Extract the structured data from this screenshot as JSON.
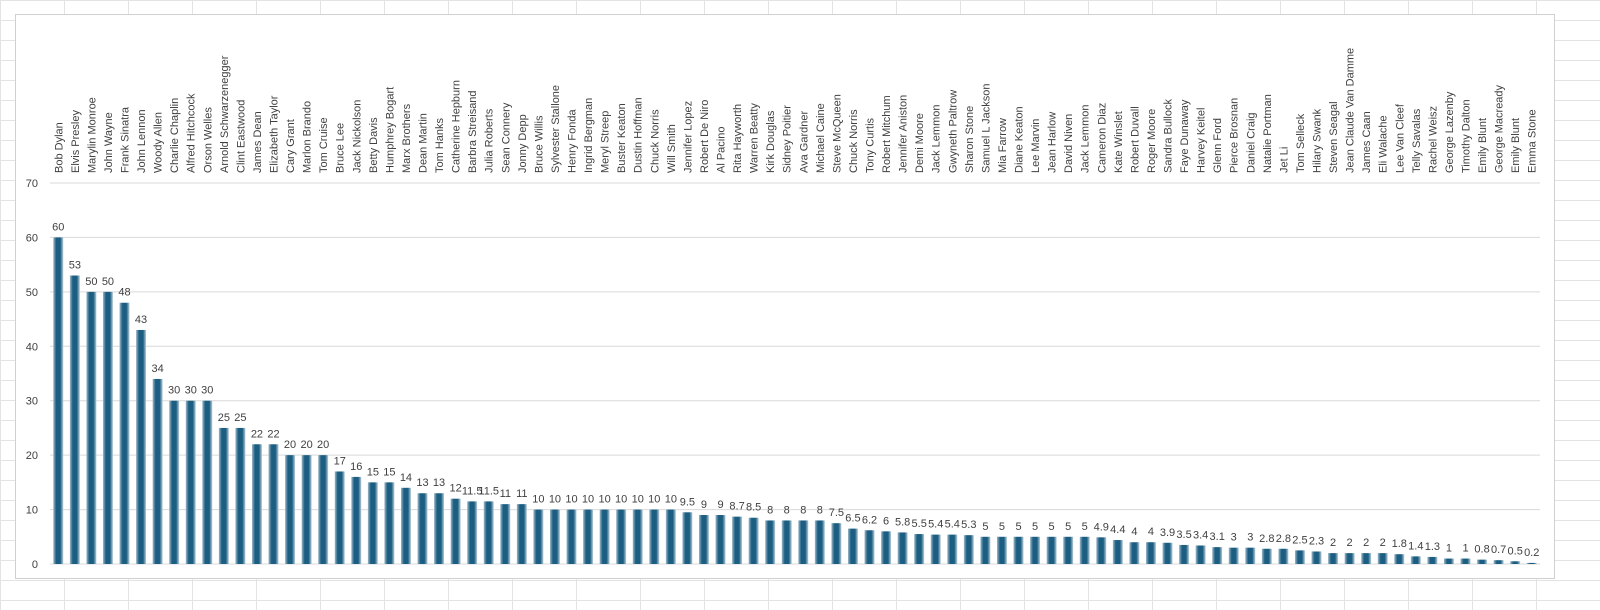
{
  "chart_data": {
    "type": "bar",
    "categories": [
      "Bob Dylan",
      "Elvis Presley",
      "Marylin Monroe",
      "John Wayne",
      "Frank Sinatra",
      "John Lennon",
      "Woody Allen",
      "Charlie Chaplin",
      "Alfred Hitchcock",
      "Orson Welles",
      "Arnold Schwarzenegger",
      "Clint Eastwood",
      "James Dean",
      "Elizabeth Taylor",
      "Cary Grant",
      "Marlon Brando",
      "Tom Cruise",
      "Bruce Lee",
      "Jack Nickolson",
      "Betty Davis",
      "Humphrey Bogart",
      "Marx Brothers",
      "Dean Martin",
      "Tom Hanks",
      "Catherine Hepburn",
      "Barbra Streisand",
      "Julia Roberts",
      "Sean Connery",
      "Jonny Depp",
      "Bruce Willis",
      "Sylvester Stallone",
      "Henry Fonda",
      "Ingrid Bergman",
      "Meryl Streep",
      "Buster Keaton",
      "Dustin Hoffman",
      "Chuck Norris",
      "Will Smith",
      "Jennifer Lopez",
      "Robert De Niro",
      "Al Pacino",
      "Rita Hayworth",
      "Warren Beatty",
      "Kirk Douglas",
      "Sidney Poitier",
      "Ava Gardner",
      "Michael Caine",
      "Steve McQueen",
      "Chuck Norris",
      "Tony Curtis",
      "Robert Mitchum",
      "Jennifer Aniston",
      "Demi Moore",
      "Jack Lemmon",
      "Gwyneth Paltrow",
      "Sharon Stone",
      "Samuel L Jackson",
      "Mia Farrow",
      "Diane Keaton",
      "Lee Marvin",
      "Jean Harlow",
      "David Niven",
      "Jack Lemmon",
      "Cameron Diaz",
      "Kate Winslet",
      "Robert Duvall",
      "Roger Moore",
      "Sandra Bullock",
      "Faye Dunaway",
      "Harvey Keitel",
      "Glenn Ford",
      "Pierce Brosnan",
      "Daniel Craig",
      "Natalie Portman",
      "Jet Li",
      "Tom Selleck",
      "Hilary Swank",
      "Steven Seagal",
      "Jean Claude Van Damme",
      "James Caan",
      "Eli Walache",
      "Lee Van Cleef",
      "Telly Savalas",
      "Rachel Weisz",
      "George Lazenby",
      "Timothy Dalton",
      "Emily Blunt",
      "George Macready",
      "Emily Blunt",
      "Emma Stone"
    ],
    "values": [
      60,
      53,
      50,
      50,
      48,
      43,
      34,
      30,
      30,
      30,
      25,
      25,
      22,
      22,
      20,
      20,
      20,
      17,
      16,
      15,
      15,
      14,
      13,
      13,
      12,
      11.5,
      11.5,
      11,
      11,
      10,
      10,
      10,
      10,
      10,
      10,
      10,
      10,
      10,
      9.5,
      9,
      9,
      8.7,
      8.5,
      8,
      8,
      8,
      8,
      7.5,
      6.5,
      6.2,
      6,
      5.8,
      5.5,
      5.4,
      5.4,
      5.3,
      5,
      5,
      5,
      5,
      5,
      5,
      5,
      4.9,
      4.4,
      4,
      4,
      3.9,
      3.5,
      3.4,
      3.1,
      3,
      3,
      2.8,
      2.8,
      2.5,
      2.3,
      2,
      2,
      2,
      2,
      1.8,
      1.4,
      1.3,
      1,
      1,
      0.8,
      0.7,
      0.5,
      0.2
    ],
    "color": "#1b5e82",
    "ylim": [
      0,
      70
    ],
    "yticks": [
      0,
      10,
      20,
      30,
      40,
      50,
      60,
      70
    ],
    "grid": true
  }
}
